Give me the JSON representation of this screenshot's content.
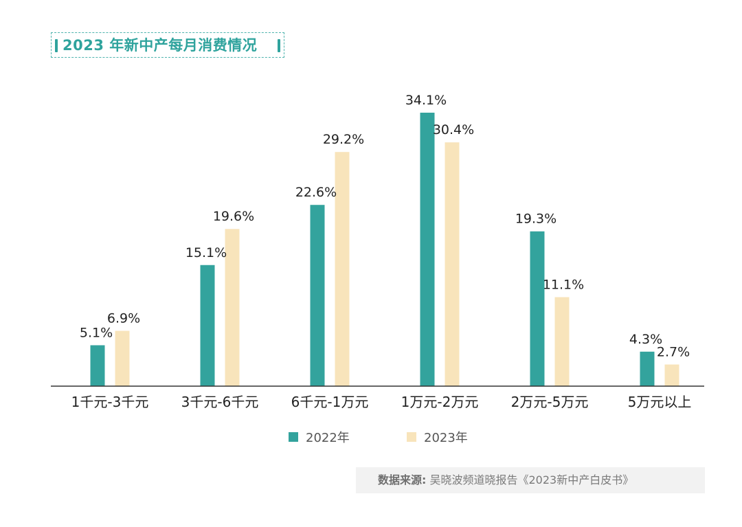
{
  "title": "2023 年新中产每月消费情况",
  "source": {
    "label": "数据来源:",
    "text": "吴晓波频道晓报告《2023新中产白皮书》"
  },
  "colors": {
    "series_2022": "#33a39d",
    "series_2023": "#f8e4bb",
    "axis": "#333333",
    "text": "#222222",
    "accent": "#2fa39d"
  },
  "chart_data": {
    "type": "bar",
    "title": "2023 年新中产每月消费情况",
    "xlabel": "",
    "ylabel": "",
    "ylim": [
      0,
      36
    ],
    "grid": false,
    "legend": "bottom-center",
    "categories": [
      "1千元-3千元",
      "3千元-6千元",
      "6千元-1万元",
      "1万元-2万元",
      "2万元-5万元",
      "5万元以上"
    ],
    "series": [
      {
        "name": "2022年",
        "values": [
          5.1,
          15.1,
          22.6,
          34.1,
          19.3,
          4.3
        ],
        "labels": [
          "5.1%",
          "15.1%",
          "22.6%",
          "34.1%",
          "19.3%",
          "4.3%"
        ]
      },
      {
        "name": "2023年",
        "values": [
          6.9,
          19.6,
          29.2,
          30.4,
          11.1,
          2.7
        ],
        "labels": [
          "6.9%",
          "19.6%",
          "29.2%",
          "30.4%",
          "11.1%",
          "2.7%"
        ]
      }
    ]
  }
}
